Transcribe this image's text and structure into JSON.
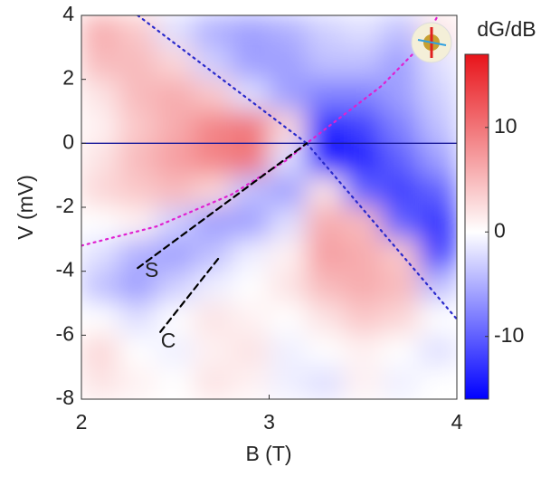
{
  "chart_data": {
    "type": "heatmap",
    "x_label": "B (T)",
    "y_label": "V (mV)",
    "colorbar_label": "dG/dB",
    "x": [
      2.1,
      2.3,
      2.5,
      2.7,
      2.9,
      3.1,
      3.3,
      3.5,
      3.7,
      3.9
    ],
    "y": [
      3.5,
      2.5,
      1.5,
      0.5,
      -0.5,
      -1.5,
      -2.5,
      -3.5,
      -4.5,
      -5.5,
      -6.5,
      -7.5
    ],
    "values": [
      [
        6,
        4,
        -2,
        -5,
        -6,
        -5,
        -3,
        -2,
        -4,
        2
      ],
      [
        5,
        5,
        3,
        -3,
        -6,
        -6,
        -4,
        -4,
        -6,
        -2
      ],
      [
        2,
        5,
        6,
        4,
        -2,
        -6,
        -8,
        -8,
        -6,
        -3
      ],
      [
        1,
        4,
        6,
        9,
        10,
        3,
        -14,
        -12,
        -8,
        -4
      ],
      [
        2,
        5,
        7,
        9,
        10,
        -2,
        -15,
        -14,
        -10,
        -6
      ],
      [
        3,
        4,
        5,
        3,
        -4,
        -6,
        2,
        -10,
        -12,
        -10
      ],
      [
        0,
        1,
        -3,
        -6,
        -6,
        -2,
        6,
        5,
        -10,
        -13
      ],
      [
        -2,
        -5,
        -6,
        -4,
        -1,
        1,
        7,
        6,
        4,
        -12
      ],
      [
        -4,
        -6,
        -3,
        -1,
        0,
        2,
        5,
        6,
        5,
        -4
      ],
      [
        0,
        -2,
        0,
        2,
        1,
        0,
        2,
        4,
        3,
        0
      ],
      [
        3,
        0,
        -1,
        1,
        2,
        -1,
        0,
        1,
        0,
        -2
      ],
      [
        2,
        1,
        0,
        2,
        1,
        -1,
        -2,
        1,
        -1,
        0
      ]
    ],
    "xlim": [
      2,
      4
    ],
    "ylim": [
      -8,
      4
    ],
    "xticks": [
      2,
      3,
      4
    ],
    "yticks": [
      4,
      2,
      0,
      -2,
      -4,
      -6,
      -8
    ],
    "clim": [
      -16,
      17
    ],
    "cticks": [
      -10,
      0,
      10
    ],
    "colormap": [
      "#0000ff",
      "#ffffff",
      "#e8141a"
    ],
    "lines": [
      {
        "x": [
          2,
          4
        ],
        "y": [
          0,
          0
        ],
        "color": "#1a1a9a",
        "style": "solid"
      },
      {
        "x": [
          2.3,
          3.2
        ],
        "y": [
          4,
          0
        ],
        "color": "#2a2acc",
        "style": "dotted"
      },
      {
        "x": [
          3.2,
          4
        ],
        "y": [
          0,
          -5.5
        ],
        "color": "#2a2acc",
        "style": "dotted"
      },
      {
        "x": [
          2,
          2.4,
          2.8,
          3.1,
          3.2,
          3.4,
          3.6,
          3.8,
          3.9
        ],
        "y": [
          -3.2,
          -2.6,
          -1.6,
          -0.5,
          0,
          0.9,
          1.8,
          3,
          4
        ],
        "color": "#e020d0",
        "style": "dotted"
      },
      {
        "x": [
          2.3,
          3.2
        ],
        "y": [
          -3.9,
          0
        ],
        "color": "#000000",
        "style": "dashed"
      },
      {
        "x": [
          2.42,
          2.73
        ],
        "y": [
          -5.9,
          -3.6
        ],
        "color": "#000000",
        "style": "dashed"
      }
    ],
    "annotations": [
      "S",
      "C"
    ]
  }
}
